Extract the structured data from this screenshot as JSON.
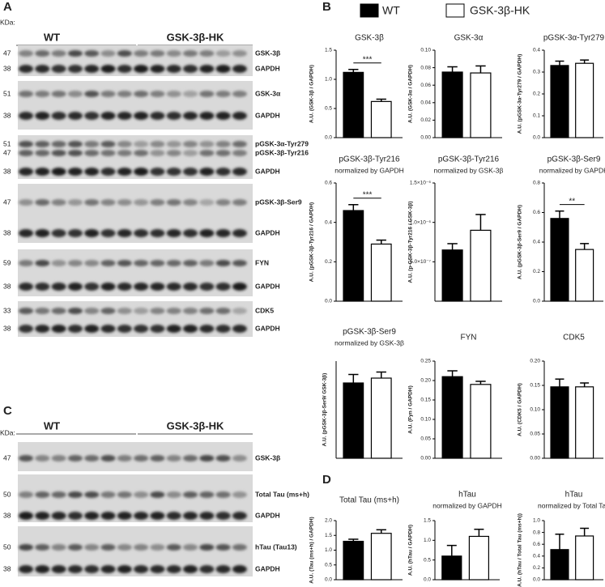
{
  "panels": [
    "A",
    "B",
    "C",
    "D"
  ],
  "legend": [
    {
      "name": "WT",
      "color": "#000000"
    },
    {
      "name": "GSK-3β-HK",
      "color": "#ffffff"
    }
  ],
  "blots": [
    {
      "unit": "KDa:",
      "groups": [
        "WT",
        "GSK-3β-HK"
      ],
      "strips": [
        [
          {
            "marker": 47,
            "label": "GSK-3β"
          },
          {
            "marker": 38,
            "label": "GAPDH"
          }
        ],
        [
          {
            "marker": 51,
            "label": "GSK-3α"
          },
          {
            "marker": 38,
            "label": "GAPDH"
          }
        ],
        [
          {
            "marker": 51,
            "label": "pGSK-3α-Tyr279"
          },
          {
            "marker": 47,
            "label": "pGSK-3β-Tyr216"
          },
          {
            "marker": 38,
            "label": "GAPDH"
          }
        ],
        [
          {
            "marker": 47,
            "label": "pGSK-3β-Ser9"
          },
          {
            "marker": 38,
            "label": "GAPDH"
          }
        ],
        [
          {
            "marker": 59,
            "label": "FYN"
          },
          {
            "marker": 38,
            "label": "GAPDH"
          }
        ],
        [
          {
            "marker": 33,
            "label": "CDK5"
          },
          {
            "marker": 38,
            "label": "GAPDH"
          }
        ]
      ]
    },
    {
      "unit": "KDa:",
      "groups": [
        "WT",
        "GSK-3β-HK"
      ],
      "strips": [
        [
          {
            "marker": 47,
            "label": "GSK-3β"
          }
        ],
        [
          {
            "marker": 50,
            "label": "Total Tau (ms+h)"
          },
          {
            "marker": 38,
            "label": "GAPDH"
          }
        ],
        [
          {
            "marker": 50,
            "label": "hTau (Tau13)"
          },
          {
            "marker": 38,
            "label": "GAPDH"
          }
        ]
      ]
    }
  ],
  "chart_data": [
    {
      "type": "bar",
      "title": "GSK-3β",
      "ylabel": "A.U. (GSK-3β / GAPDH)",
      "categories": [
        null,
        null
      ],
      "values": [
        1.12,
        0.62
      ],
      "errors": [
        0.05,
        0.04
      ],
      "annotation": "***",
      "ylim": [
        0,
        1.5
      ],
      "yticks": [
        {
          "value": 0,
          "label": "0.0"
        },
        0.5,
        {
          "value": 1,
          "label": "1.0"
        },
        1.5
      ]
    },
    {
      "type": "bar",
      "title": "GSK-3α",
      "ylabel": "A.U. (GSK-3α / GAPDH)",
      "categories": [
        null,
        null
      ],
      "values": [
        0.075,
        0.074
      ],
      "errors": [
        0.006,
        0.008
      ],
      "ylim": [
        0,
        0.1
      ],
      "yticks": [
        {
          "value": 0,
          "label": "0.00"
        },
        0.02,
        0.04,
        0.06,
        0.08,
        {
          "value": 0.1,
          "label": "0.10"
        }
      ]
    },
    {
      "type": "bar",
      "title": "pGSK-3α-Tyr279",
      "ylabel": "A.U. (pGSK-3α-Tyr279 / GAPDH)",
      "categories": [
        null,
        null
      ],
      "values": [
        0.33,
        0.34
      ],
      "errors": [
        0.02,
        0.015
      ],
      "ylim": [
        0,
        0.4
      ],
      "yticks": [
        {
          "value": 0,
          "label": "0.0"
        },
        0.1,
        0.2,
        0.3,
        0.4
      ]
    },
    {
      "type": "bar",
      "title": "pGSK-3β-Tyr216",
      "subtitle": "normalized by GAPDH",
      "ylabel": "A.U. (pGSK-3β-Tyr216 / GAPDH)",
      "categories": [
        null,
        null
      ],
      "values": [
        0.46,
        0.29
      ],
      "errors": [
        0.03,
        0.02
      ],
      "annotation": "***",
      "ylim": [
        0,
        0.6
      ],
      "yticks": [
        {
          "value": 0,
          "label": "0.0"
        },
        0.2,
        0.4,
        0.6
      ]
    },
    {
      "type": "bar",
      "title": "pGSK-3β-Tyr216",
      "subtitle": "normalized by GSK-3β",
      "ylabel": "A.U. (p-GSK-3β-Tyr216 / GSK-3β)",
      "categories": [
        null,
        null
      ],
      "values": [
        6.5e-07,
        9e-07
      ],
      "errors": [
        8e-08,
        2e-07
      ],
      "ylim": [
        0,
        1.5e-06
      ],
      "yticks": [
        {
          "value": 5e-07,
          "label": "5.0×10⁻⁷"
        },
        {
          "value": 1e-06,
          "label": "1.0×10⁻⁶"
        },
        {
          "value": 1.5e-06,
          "label": "1.5×10⁻⁶"
        }
      ]
    },
    {
      "type": "bar",
      "title": "pGSK-3β-Ser9",
      "subtitle": "normalized by GAPDH",
      "ylabel": "A.U. (pGSK-3β-Ser9 / GAPDH)",
      "categories": [
        null,
        null
      ],
      "values": [
        0.56,
        0.35
      ],
      "errors": [
        0.05,
        0.04
      ],
      "annotation": "**",
      "ylim": [
        0,
        0.8
      ],
      "yticks": [
        {
          "value": 0,
          "label": "0.0"
        },
        0.2,
        0.4,
        0.6,
        0.8
      ]
    },
    {
      "type": "bar",
      "title": "pGSK-3β-Ser9",
      "subtitle": "normalized by GSK-3β",
      "ylabel": "A.U. (pGSK-3β-Ser9/ GSK-3β)",
      "categories": [
        null,
        null
      ],
      "values": [
        3.1,
        3.3
      ],
      "errors": [
        0.35,
        0.25
      ],
      "ylim": [
        0,
        4
      ],
      "yticks": []
    },
    {
      "type": "bar",
      "title": "FYN",
      "ylabel": "A.U. (Fyn / GAPDH)",
      "categories": [
        null,
        null
      ],
      "values": [
        0.21,
        0.19
      ],
      "errors": [
        0.015,
        0.008
      ],
      "ylim": [
        0,
        0.25
      ],
      "yticks": [
        {
          "value": 0,
          "label": "0.00"
        },
        0.05,
        {
          "value": 0.1,
          "label": "0.10"
        },
        0.15,
        {
          "value": 0.2,
          "label": "0.20"
        },
        0.25
      ]
    },
    {
      "type": "bar",
      "title": "CDK5",
      "ylabel": "A.U. (CDK5 / GAPDH)",
      "categories": [
        null,
        null
      ],
      "values": [
        0.147,
        0.147
      ],
      "errors": [
        0.016,
        0.008
      ],
      "ylim": [
        0,
        0.2
      ],
      "yticks": [
        {
          "value": 0,
          "label": "0.00"
        },
        0.05,
        {
          "value": 0.1,
          "label": "0.10"
        },
        0.15,
        {
          "value": 0.2,
          "label": "0.20"
        }
      ]
    },
    {
      "type": "bar",
      "title": "Total Tau (ms+h)",
      "ylabel": "A.U. (Tau (ms+h) / GAPDH)",
      "categories": [
        null,
        null
      ],
      "values": [
        1.3,
        1.57
      ],
      "errors": [
        0.07,
        0.12
      ],
      "ylim": [
        0,
        2
      ],
      "yticks": [
        {
          "value": 0,
          "label": "0.0"
        },
        0.5,
        {
          "value": 1,
          "label": "1.0"
        },
        1.5,
        {
          "value": 2,
          "label": "2.0"
        }
      ]
    },
    {
      "type": "bar",
      "title": "hTau",
      "subtitle": "normalized by GAPDH",
      "ylabel": "A.U. (hTau / GAPDH)",
      "categories": [
        null,
        null
      ],
      "values": [
        0.6,
        1.1
      ],
      "errors": [
        0.27,
        0.18
      ],
      "ylim": [
        0,
        1.5
      ],
      "yticks": [
        {
          "value": 0,
          "label": "0.0"
        },
        0.5,
        {
          "value": 1,
          "label": "1.0"
        },
        1.5
      ]
    },
    {
      "type": "bar",
      "title": "hTau",
      "subtitle": "normalized by Total Tau",
      "ylabel": "A.U. (hTau / Total Tau (ms+h))",
      "categories": [
        null,
        null
      ],
      "values": [
        0.51,
        0.74
      ],
      "errors": [
        0.26,
        0.13
      ],
      "ylim": [
        0,
        1
      ],
      "yticks": [
        {
          "value": 0,
          "label": "0.0"
        },
        0.2,
        0.4,
        0.6,
        0.8,
        {
          "value": 1,
          "label": "1.0"
        }
      ]
    }
  ]
}
